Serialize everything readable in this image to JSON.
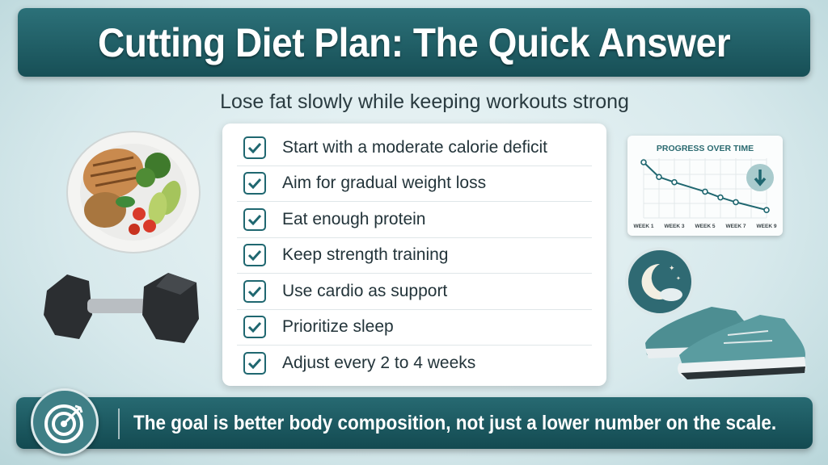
{
  "header": {
    "title": "Cutting Diet Plan: The Quick Answer"
  },
  "subtitle": "Lose fat slowly while keeping workouts strong",
  "checklist": {
    "items": [
      {
        "label": "Start with a moderate calorie deficit",
        "checked": true
      },
      {
        "label": "Aim for gradual weight loss",
        "checked": true
      },
      {
        "label": "Eat enough protein",
        "checked": true
      },
      {
        "label": "Keep strength training",
        "checked": true
      },
      {
        "label": "Use cardio as support",
        "checked": true
      },
      {
        "label": "Prioritize sleep",
        "checked": true
      },
      {
        "label": "Adjust every 2 to 4 weeks",
        "checked": true
      }
    ]
  },
  "chart_data": {
    "type": "line",
    "title": "PROGRESS OVER TIME",
    "tick_labels": [
      "WEEK 1",
      "WEEK 3",
      "WEEK 5",
      "WEEK 7",
      "WEEK 9"
    ],
    "x": [
      1,
      2,
      3,
      5,
      6,
      7,
      9
    ],
    "values": [
      100,
      72,
      62,
      44,
      33,
      24,
      9
    ],
    "trend_icon": "arrow-down-icon",
    "grid": true,
    "color": "#1f6770"
  },
  "footer": {
    "message": "The goal is better body composition, not just a lower number on the scale.",
    "icon": "target-icon"
  },
  "colors": {
    "accent": "#1f6770",
    "header": "#1d5c62",
    "background": "#d7e9ec"
  }
}
